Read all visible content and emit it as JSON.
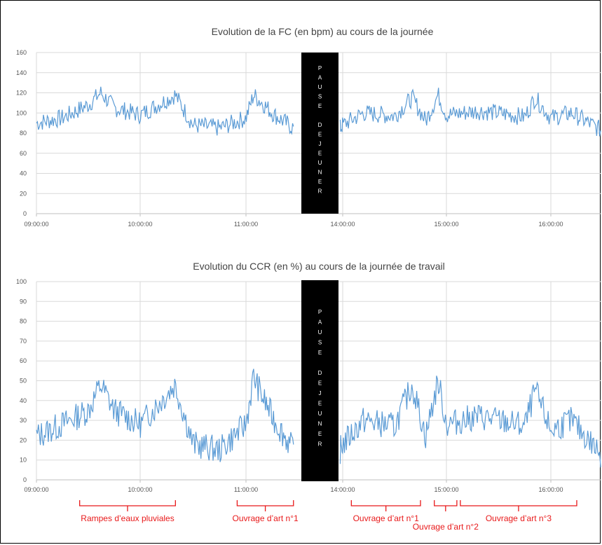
{
  "colors": {
    "series": "#5b9bd5",
    "grid": "#d9d9d9",
    "axis": "#bfbfbf",
    "pause_bar": "#000000",
    "annotation": "#e8191a"
  },
  "pause_label": [
    "P",
    "A",
    "U",
    "S",
    "E",
    "",
    "D",
    "E",
    "J",
    "E",
    "U",
    "N",
    "E",
    "R"
  ],
  "chart_data": [
    {
      "type": "line",
      "title": "Evolution de la FC (en bpm) au cours de la journée",
      "ylim": [
        0,
        160
      ],
      "y_ticks": [
        "0",
        "20",
        "40",
        "60",
        "80",
        "100",
        "120",
        "140",
        "160"
      ],
      "x_ticks": [
        "09:00:00",
        "10:00:00",
        "11:00:00",
        "14:00:00",
        "15:00:00",
        "16:00:00"
      ],
      "grid": true,
      "x_hours": [
        9.0,
        9.25,
        9.5,
        9.62,
        9.75,
        10.0,
        10.2,
        10.33,
        10.5,
        10.75,
        11.0,
        11.08,
        11.17,
        11.3,
        11.5,
        13.95,
        14.2,
        14.5,
        14.67,
        14.8,
        14.92,
        15.0,
        15.3,
        15.5,
        15.75,
        15.85,
        16.0,
        16.2,
        16.5
      ],
      "series": [
        {
          "values": [
            90,
            95,
            108,
            120,
            105,
            98,
            110,
            118,
            88,
            85,
            95,
            118,
            110,
            98,
            85,
            85,
            100,
            97,
            115,
            92,
            118,
            98,
            102,
            100,
            96,
            115,
            95,
            100,
            82
          ]
        }
      ],
      "pause_band": {
        "from": "11:35:00",
        "to": "13:55:00"
      }
    },
    {
      "type": "line",
      "title": "Evolution du CCR (en %) au cours de la journée de travail",
      "ylim": [
        0,
        100
      ],
      "y_ticks": [
        "0",
        "10",
        "20",
        "30",
        "40",
        "50",
        "60",
        "70",
        "80",
        "90",
        "100"
      ],
      "x_ticks": [
        "09:00:00",
        "10:00:00",
        "11:00:00",
        "14:00:00",
        "15:00:00",
        "16:00:00"
      ],
      "grid": true,
      "x_hours": [
        9.0,
        9.25,
        9.5,
        9.62,
        9.75,
        10.0,
        10.2,
        10.33,
        10.5,
        10.75,
        11.0,
        11.08,
        11.17,
        11.3,
        11.5,
        13.95,
        14.2,
        14.5,
        14.67,
        14.8,
        14.92,
        15.0,
        15.3,
        15.5,
        15.75,
        15.85,
        16.0,
        16.2,
        16.5
      ],
      "series": [
        {
          "values": [
            22,
            28,
            35,
            48,
            35,
            28,
            40,
            48,
            18,
            15,
            28,
            52,
            42,
            30,
            15,
            15,
            30,
            27,
            48,
            22,
            50,
            28,
            32,
            30,
            27,
            45,
            25,
            30,
            12
          ]
        }
      ],
      "pause_band": {
        "from": "11:35:00",
        "to": "13:55:00"
      },
      "annotations": [
        {
          "label": "Rampes d’eaux pluviales",
          "from": "09:25:00",
          "to": "10:20:00"
        },
        {
          "label": "Ouvrage d’art n°1",
          "from": "10:55:00",
          "to": "11:30:00"
        },
        {
          "label": "Ouvrage d’art n°1",
          "from": "14:05:00",
          "to": "14:45:00"
        },
        {
          "label": "Ouvrage d’art n°2",
          "from": "14:53:00",
          "to": "15:06:00"
        },
        {
          "label": "Ouvrage d’art n°3",
          "from": "15:08:00",
          "to": "16:15:00"
        }
      ]
    }
  ]
}
